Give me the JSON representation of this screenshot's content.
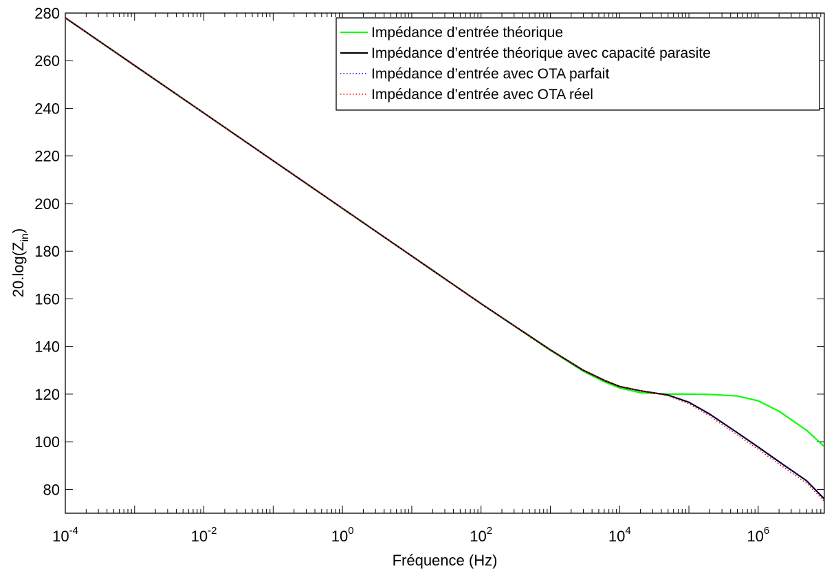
{
  "chart_data": {
    "type": "line",
    "xlabel": "Fréquence (Hz)",
    "ylabel": "20.log(Z",
    "ylabel_sub": "in",
    "ylabel_close": ")",
    "xscale": "log",
    "xlim": [
      0.0001,
      9000000
    ],
    "ylim": [
      70,
      280
    ],
    "grid": false,
    "legend_position": "top-right",
    "xticks": [
      {
        "value": 0.0001,
        "base": "10",
        "exp": "-4"
      },
      {
        "value": 0.01,
        "base": "10",
        "exp": "-2"
      },
      {
        "value": 1,
        "base": "10",
        "exp": "0"
      },
      {
        "value": 100,
        "base": "10",
        "exp": "2"
      },
      {
        "value": 10000,
        "base": "10",
        "exp": "4"
      },
      {
        "value": 1000000,
        "base": "10",
        "exp": "6"
      }
    ],
    "yticks": [
      80,
      100,
      120,
      140,
      160,
      180,
      200,
      220,
      240,
      260,
      280
    ],
    "series": [
      {
        "name": "Impédance d’entrée théorique",
        "color": "#00ff00",
        "dash": "solid",
        "x": [
          0.0001,
          0.001,
          0.01,
          0.1,
          1,
          10,
          100,
          1000,
          3000,
          6000,
          10000,
          20000,
          50000,
          100000,
          200000,
          500000,
          1000000,
          2000000,
          5000000,
          9000000
        ],
        "y": [
          278,
          258,
          238,
          218,
          198,
          178,
          158,
          138.4,
          129.6,
          125.2,
          122.6,
          120.6,
          120,
          120,
          119.9,
          119.2,
          117.2,
          112.8,
          104.8,
          98
        ]
      },
      {
        "name": "Impédance d’entrée théorique avec capacité parasite",
        "color": "#000000",
        "dash": "solid",
        "x": [
          0.0001,
          0.001,
          0.01,
          0.1,
          1,
          10,
          100,
          1000,
          3000,
          6000,
          10000,
          20000,
          50000,
          100000,
          200000,
          500000,
          1000000,
          2000000,
          5000000,
          9000000
        ],
        "y": [
          278,
          258,
          238,
          218,
          198,
          178,
          158,
          138.6,
          130,
          125.8,
          123.2,
          121.4,
          119.6,
          116.6,
          111.6,
          103.8,
          97.8,
          91.6,
          83.6,
          76
        ]
      },
      {
        "name": "Impédance d’entrée avec OTA parfait",
        "color": "#0000ff",
        "dash": "dotted",
        "x": [
          0.0001,
          0.001,
          0.01,
          0.1,
          1,
          10,
          100,
          1000,
          3000,
          6000,
          10000,
          20000,
          50000,
          100000,
          200000,
          500000,
          1000000,
          2000000,
          5000000,
          9000000
        ],
        "y": [
          278,
          258,
          238,
          218,
          198,
          178,
          158,
          138.6,
          130,
          125.8,
          123.2,
          121.4,
          119.6,
          116.6,
          111.6,
          103.8,
          97.8,
          91.6,
          83.6,
          76
        ]
      },
      {
        "name": "Impédance d’entrée avec OTA réel",
        "color": "#ff0000",
        "dash": "dotted",
        "x": [
          0.0001,
          0.001,
          0.01,
          0.1,
          1,
          10,
          100,
          1000,
          3000,
          6000,
          10000,
          20000,
          50000,
          100000,
          200000,
          500000,
          1000000,
          2000000,
          5000000,
          9000000
        ],
        "y": [
          278,
          258,
          238,
          218,
          198,
          178,
          158,
          138.6,
          130,
          125.8,
          123.2,
          121.4,
          119.3,
          116,
          110.8,
          102.8,
          96.8,
          90.6,
          82.6,
          75
        ]
      }
    ]
  }
}
